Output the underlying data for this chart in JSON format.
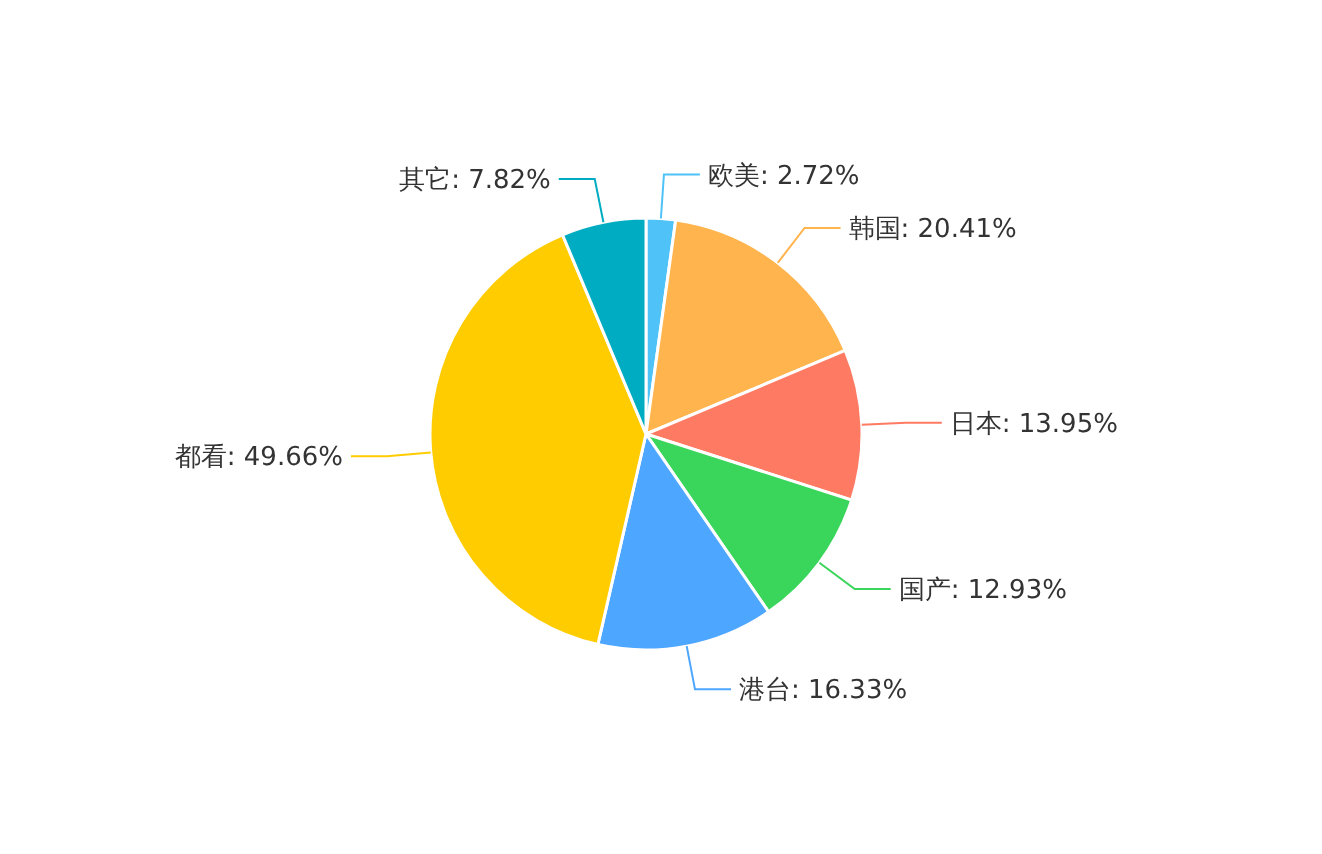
{
  "chart_data": {
    "type": "pie",
    "categories": [
      "欧美",
      "韩国",
      "日本",
      "国产",
      "港台",
      "都看",
      "其它"
    ],
    "values": [
      2.72,
      20.41,
      13.95,
      12.93,
      16.33,
      49.66,
      7.82
    ],
    "value_labels": [
      "2.72%",
      "20.41%",
      "13.95%",
      "12.93%",
      "16.33%",
      "49.66%",
      "7.82%"
    ],
    "colors": [
      "#4fc3f7",
      "#ffb44d",
      "#ff7a63",
      "#3ad65c",
      "#4da6ff",
      "#ffcc00",
      "#00acc1"
    ],
    "legend": false
  }
}
